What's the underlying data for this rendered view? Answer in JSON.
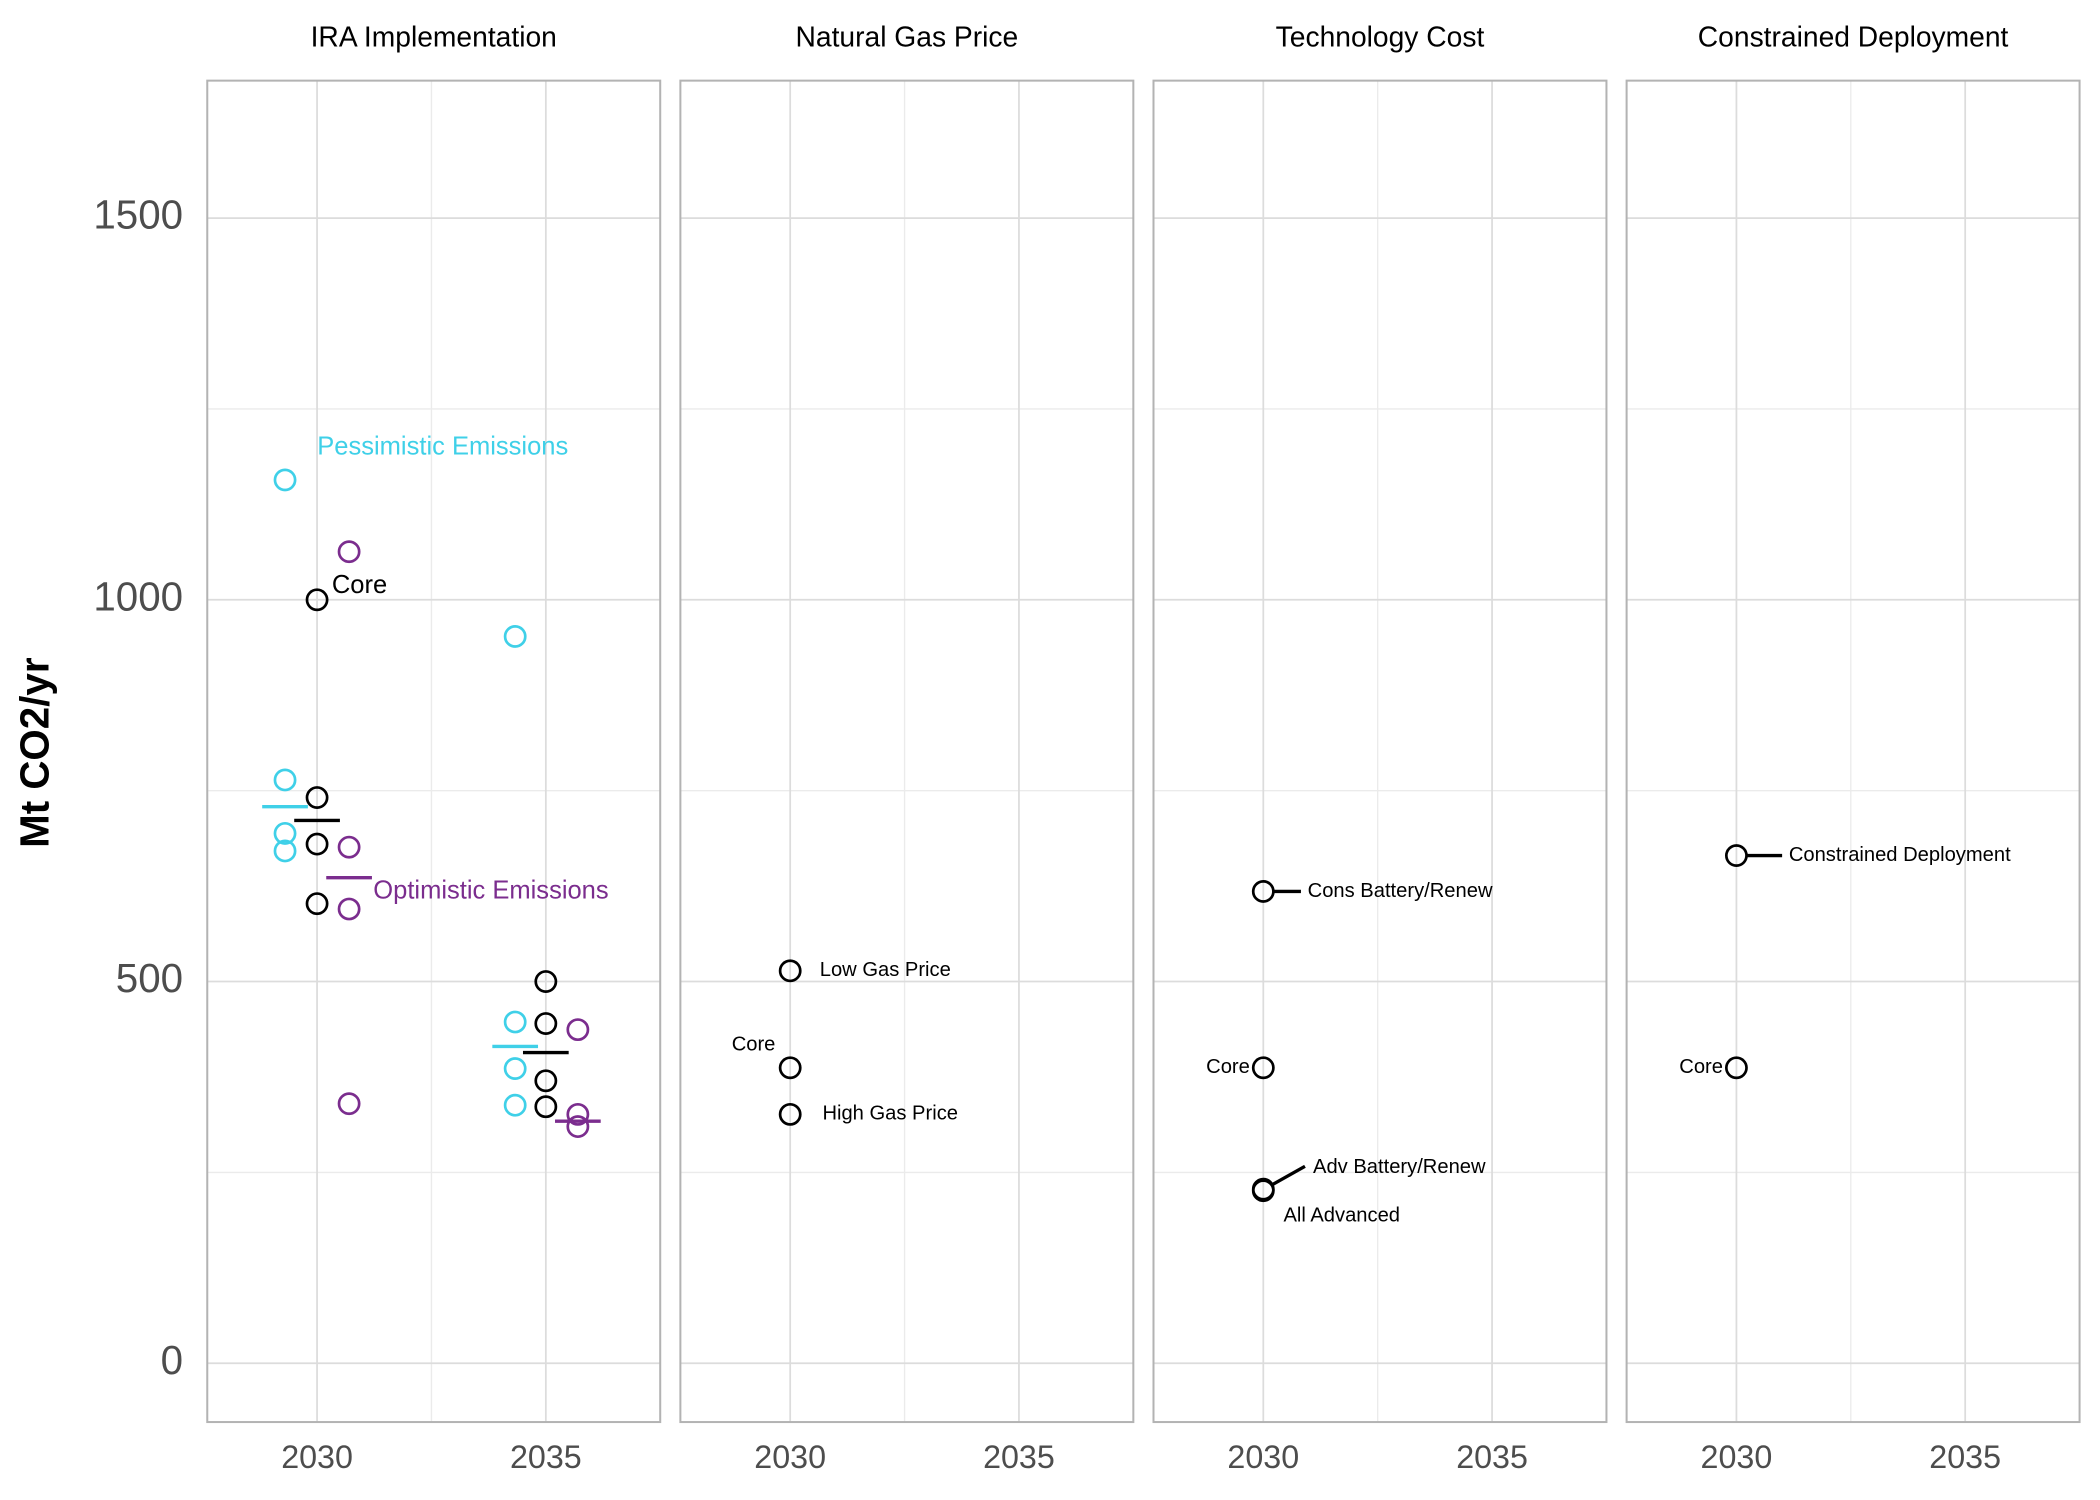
{
  "chart_data": [
    {
      "type": "scatter",
      "title": "IRA Implementation",
      "ylabel": "Mt CO2/yr",
      "xlim": [
        2027.6,
        2037.5
      ],
      "xticks": [
        2030,
        2035
      ],
      "minor_xticks": [
        2032.5
      ],
      "ylim": [
        -77,
        1680
      ],
      "yticks": [
        0,
        500,
        1000,
        1500
      ],
      "minor_yticks": [
        250,
        750,
        1250
      ],
      "grid": true,
      "series": [
        {
          "name": "Pessimistic Emissions",
          "color": "#3fd0e8",
          "x": [
            2029.3,
            2029.3,
            2029.3,
            2029.3,
            2034.33,
            2034.33,
            2034.33,
            2034.33
          ],
          "values": [
            1157,
            764,
            694,
            671,
            952,
            447,
            386,
            338
          ],
          "mean_x": [
            2029.3,
            2034.33
          ],
          "means": [
            729,
            415
          ]
        },
        {
          "name": "Core",
          "color": "#000000",
          "x": [
            2030,
            2030,
            2030,
            2030,
            2035,
            2035,
            2035,
            2035
          ],
          "values": [
            1000,
            741,
            680,
            602,
            500,
            445,
            370,
            336
          ],
          "mean_x": [
            2030,
            2035
          ],
          "means": [
            711,
            407
          ]
        },
        {
          "name": "Optimistic Emissions",
          "color": "#7b2d8e",
          "x": [
            2030.7,
            2030.7,
            2030.7,
            2030.7,
            2035.7,
            2035.7,
            2035.7
          ],
          "values": [
            1063,
            676,
            595,
            340,
            437,
            326,
            310
          ],
          "mean_x": [
            2030.7,
            2035.7
          ],
          "means": [
            636,
            317
          ]
        }
      ]
    },
    {
      "type": "scatter",
      "title": "Natural Gas Price",
      "sharey": true,
      "xlim": [
        2027.6,
        2037.5
      ],
      "xticks": [
        2030,
        2035
      ],
      "minor_xticks": [
        2032.5
      ],
      "grid": true,
      "series": [
        {
          "color": "#000000",
          "x": [
            2030,
            2030,
            2030
          ],
          "values": [
            514,
            387,
            326
          ],
          "labels": [
            "Low Gas Price",
            "Core",
            "High Gas Price"
          ]
        }
      ]
    },
    {
      "type": "scatter",
      "title": "Technology Cost",
      "sharey": true,
      "xlim": [
        2027.6,
        2037.5
      ],
      "xticks": [
        2030,
        2035
      ],
      "minor_xticks": [
        2032.5
      ],
      "grid": true,
      "series": [
        {
          "color": "#000000",
          "x": [
            2030,
            2030,
            2030,
            2030
          ],
          "values": [
            618,
            387,
            228,
            226
          ],
          "labels": [
            "Cons Battery/Renew",
            "Core",
            "Adv Battery/Renew",
            "All Advanced"
          ]
        }
      ]
    },
    {
      "type": "scatter",
      "title": "Constrained Deployment",
      "sharey": true,
      "xlim": [
        2027.6,
        2037.5
      ],
      "xticks": [
        2030,
        2035
      ],
      "minor_xticks": [
        2032.5
      ],
      "grid": true,
      "series": [
        {
          "color": "#000000",
          "x": [
            2030,
            2030
          ],
          "values": [
            665,
            387
          ],
          "labels": [
            "Constrained Deployment",
            "Core"
          ]
        }
      ]
    }
  ]
}
